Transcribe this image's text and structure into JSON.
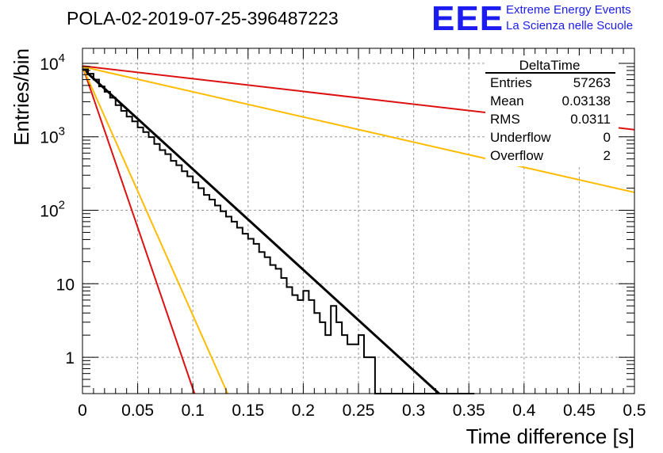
{
  "header": {
    "title": "POLA-02-2019-07-25-396487223",
    "logo_text": "EEE",
    "logo_line1": "Extreme Energy Events",
    "logo_line2": "La Scienza nelle Scuole",
    "logo_color": "#1c1cf0"
  },
  "stats_box": {
    "title": "DeltaTime",
    "rows": [
      {
        "label": "Entries",
        "value": "57263"
      },
      {
        "label": "Mean",
        "value": "0.03138"
      },
      {
        "label": "RMS",
        "value": "0.0311"
      },
      {
        "label": "Underflow",
        "value": "0"
      },
      {
        "label": "Overflow",
        "value": "2"
      }
    ]
  },
  "chart_data": {
    "type": "line",
    "xlabel": "Time difference [s]",
    "ylabel": "Entries/bin",
    "xlim": [
      0,
      0.5
    ],
    "ylim": [
      0.32,
      16000
    ],
    "yscale": "log",
    "grid": true,
    "x_ticks": [
      "0",
      "0.05",
      "0.1",
      "0.15",
      "0.2",
      "0.25",
      "0.3",
      "0.35",
      "0.4",
      "0.45",
      "0.5"
    ],
    "x_tick_values": [
      0,
      0.05,
      0.1,
      0.15,
      0.2,
      0.25,
      0.3,
      0.35,
      0.4,
      0.45,
      0.5
    ],
    "y_ticks": [
      {
        "value": 1,
        "base": "1",
        "exp": ""
      },
      {
        "value": 10,
        "base": "10",
        "exp": ""
      },
      {
        "value": 100,
        "base": "10",
        "exp": "2"
      },
      {
        "value": 1000,
        "base": "10",
        "exp": "3"
      },
      {
        "value": 10000,
        "base": "10",
        "exp": "4"
      }
    ],
    "histogram": {
      "bin_width": 0.005,
      "color": "#000000",
      "values": [
        8300,
        7200,
        6000,
        4850,
        4100,
        3400,
        2700,
        2250,
        1880,
        1620,
        1340,
        1160,
        990,
        800,
        660,
        580,
        470,
        410,
        340,
        290,
        240,
        200,
        162,
        140,
        116,
        97,
        82,
        70,
        58,
        48,
        41,
        35,
        27,
        23,
        18,
        16,
        12,
        9,
        7,
        6,
        8,
        6,
        4,
        3,
        2,
        5,
        3,
        2,
        1.5,
        1.5,
        2,
        1,
        1,
        0.3,
        0.3,
        0.3,
        0.3,
        0.3,
        0.3,
        0.3,
        0.3,
        0.3,
        0.3,
        0.3,
        0.3,
        0.3,
        0.3,
        0.3,
        0.3,
        0.3,
        0.3
      ]
    },
    "series": [
      {
        "color": "#000000",
        "x": [
          0,
          0.323
        ],
        "y": [
          8500,
          0.32
        ]
      },
      {
        "color": "#dd1111",
        "x": [
          0,
          0.5
        ],
        "y": [
          9200,
          1250
        ]
      },
      {
        "color": "#dd1111",
        "x": [
          0,
          0.1015
        ],
        "y": [
          9200,
          0.32
        ]
      },
      {
        "color": "#ffbb00",
        "x": [
          0,
          0.5
        ],
        "y": [
          9000,
          175
        ]
      },
      {
        "color": "#ffbb00",
        "x": [
          0,
          0.1315
        ],
        "y": [
          9000,
          0.32
        ]
      }
    ]
  }
}
